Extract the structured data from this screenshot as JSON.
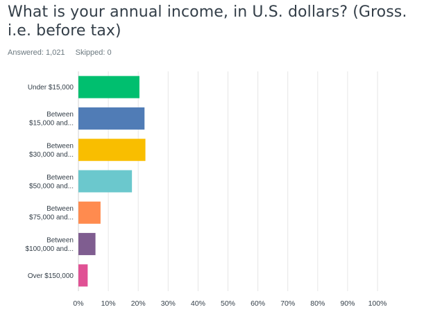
{
  "question": {
    "title": "What is your annual income, in U.S. dollars? (Gross. i.e. before tax)"
  },
  "stats": {
    "answered": "Answered: 1,021",
    "skipped": "Skipped: 0"
  },
  "chart_data": {
    "type": "bar",
    "orientation": "horizontal",
    "categories": [
      [
        "Under $15,000"
      ],
      [
        "Between",
        "$15,000 and..."
      ],
      [
        "Between",
        "$30,000 and..."
      ],
      [
        "Between",
        "$50,000 and..."
      ],
      [
        "Between",
        "$75,000 and..."
      ],
      [
        "Between",
        "$100,000 and..."
      ],
      [
        "Over $150,000"
      ]
    ],
    "values": [
      20.4,
      22.1,
      22.4,
      17.9,
      7.4,
      5.7,
      3.1
    ],
    "colors": [
      "#00bf6f",
      "#507cb6",
      "#f9be00",
      "#6bc8cd",
      "#ff8b4f",
      "#7f5d90",
      "#e05194"
    ],
    "xlim": [
      0,
      100
    ],
    "xticks": [
      "0%",
      "10%",
      "20%",
      "30%",
      "40%",
      "50%",
      "60%",
      "70%",
      "80%",
      "90%",
      "100%"
    ],
    "grid": true
  }
}
